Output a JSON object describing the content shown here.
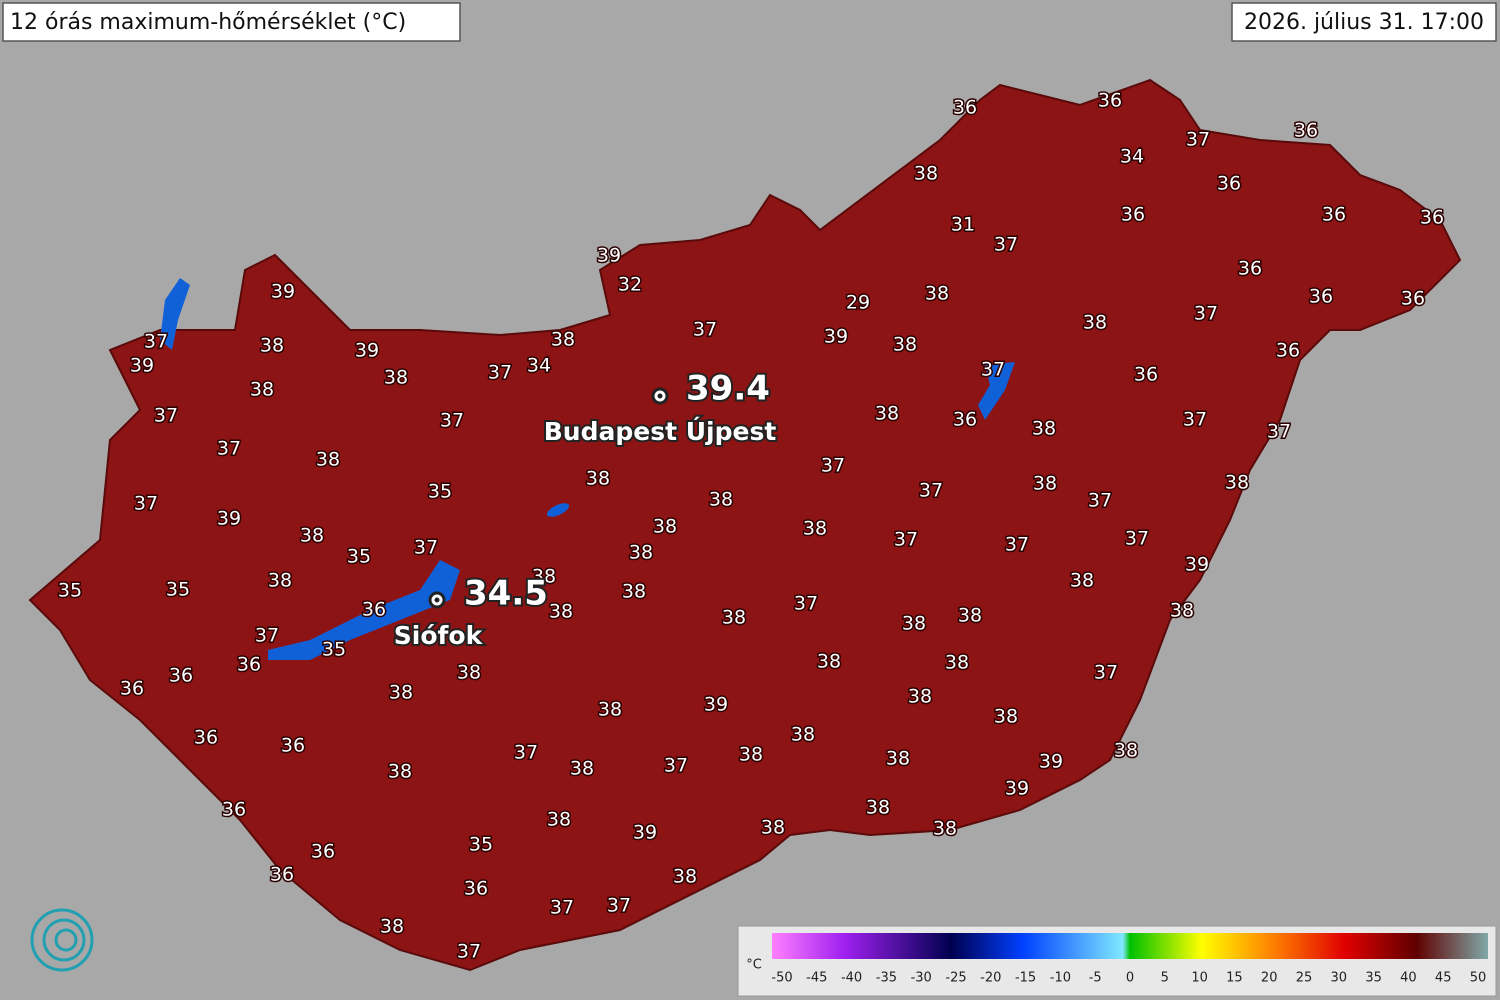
{
  "header": {
    "title": "12 órás maximum-hőmérséklet (°C)",
    "datetime": "2026. július 31. 17:00"
  },
  "map": {
    "values": [
      36,
      36,
      37,
      36,
      34,
      38,
      36,
      36,
      36,
      36,
      31,
      37,
      39,
      36,
      32,
      29,
      38,
      36,
      36,
      39,
      37,
      39,
      38,
      38,
      37,
      36,
      38,
      37,
      38,
      39,
      39,
      37,
      34,
      38,
      38,
      37,
      36,
      37,
      37,
      38,
      36,
      38,
      37,
      37,
      37,
      38,
      38,
      37,
      35,
      37,
      38,
      38,
      38,
      37,
      37,
      39,
      38,
      38,
      38,
      37,
      37,
      37,
      35,
      37,
      38,
      39,
      38,
      38,
      38,
      35,
      35,
      38,
      37,
      36,
      38,
      38,
      38,
      38,
      38,
      37,
      35,
      38,
      38,
      36,
      37,
      36,
      36,
      38,
      38,
      38,
      39,
      38,
      38,
      36,
      36,
      38,
      37,
      38,
      38,
      39,
      38,
      38,
      38,
      37,
      39,
      36,
      38,
      38,
      38,
      38,
      39,
      35,
      36,
      36,
      38,
      36,
      37,
      37,
      38,
      37
    ],
    "stations": [
      {
        "name": "Budapest Újpest",
        "value": 39.4
      },
      {
        "name": "Siófok",
        "value": 34.5
      }
    ]
  },
  "legend": {
    "unit": "°C",
    "ticks": [
      -50,
      -45,
      -40,
      -35,
      -30,
      -25,
      -20,
      -15,
      -10,
      -5,
      0,
      5,
      10,
      15,
      20,
      25,
      30,
      35,
      40,
      45,
      50
    ]
  }
}
